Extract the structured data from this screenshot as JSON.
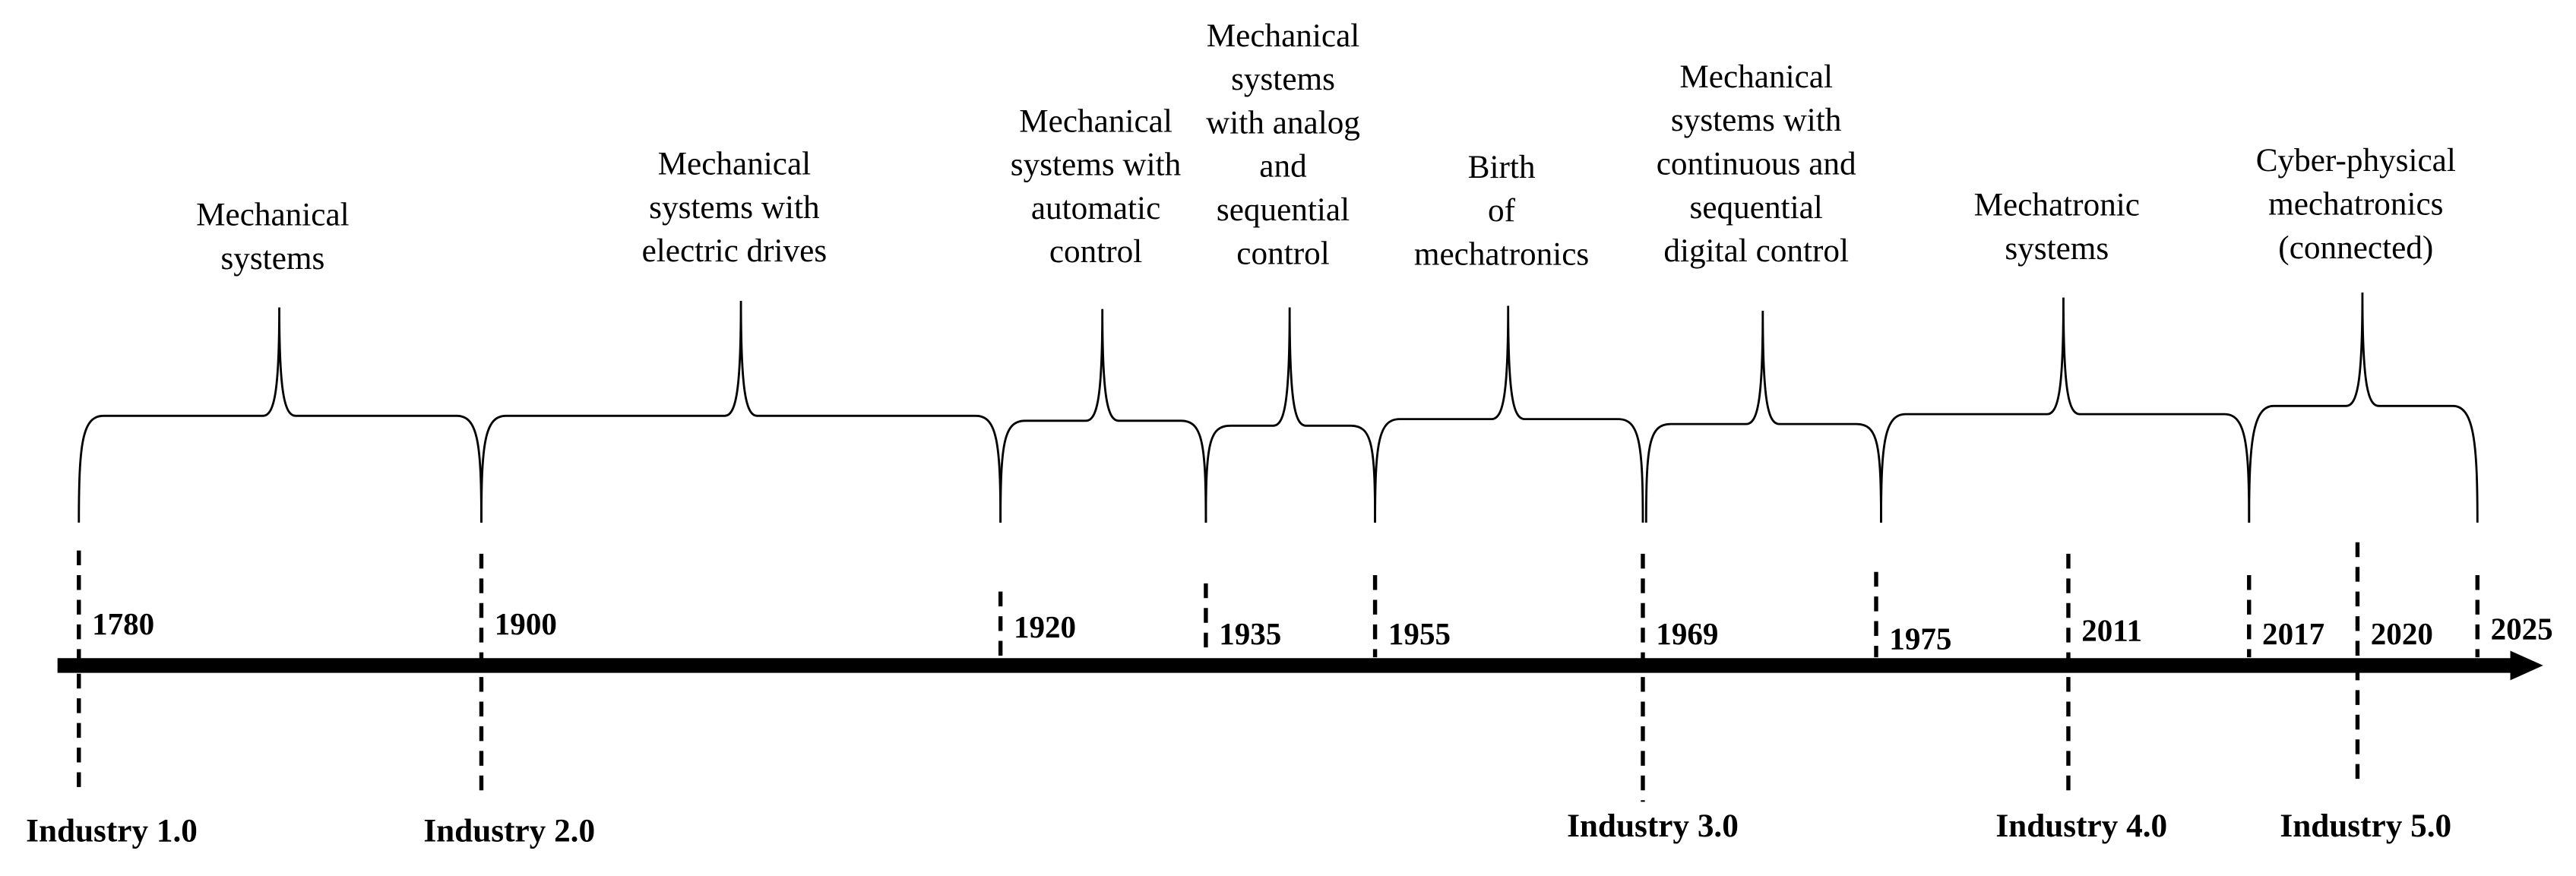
{
  "eras": [
    {
      "lines": [
        "Mechanical",
        "systems"
      ]
    },
    {
      "lines": [
        "Mechanical",
        "systems with",
        "electric drives"
      ]
    },
    {
      "lines": [
        "Mechanical",
        "systems with",
        "automatic",
        "control"
      ]
    },
    {
      "lines": [
        "Mechanical",
        "systems",
        "with analog",
        "and",
        "sequential",
        "control"
      ]
    },
    {
      "lines": [
        "Birth",
        "of",
        "mechatronics"
      ]
    },
    {
      "lines": [
        "Mechanical",
        "systems with",
        "continuous and",
        "sequential",
        "digital control"
      ]
    },
    {
      "lines": [
        "Mechatronic",
        "systems"
      ]
    },
    {
      "lines": [
        "Cyber-physical",
        "mechatronics",
        "(connected)"
      ]
    }
  ],
  "years": [
    1780,
    1900,
    1920,
    1935,
    1955,
    1969,
    1975,
    2011,
    2017,
    2020,
    2025
  ],
  "industries": [
    "Industry 1.0",
    "Industry 2.0",
    "Industry 3.0",
    "Industry 4.0",
    "Industry 5.0"
  ]
}
